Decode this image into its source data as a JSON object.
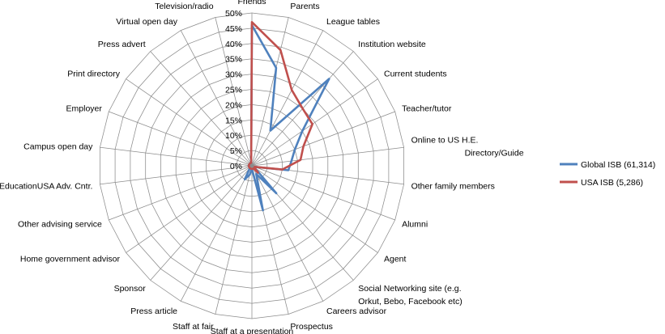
{
  "chart_data": {
    "type": "radar",
    "categories": [
      "Friends",
      "Parents",
      "League tables",
      "Institution website",
      "Current students",
      "Teacher/tutor",
      "Online Directory/Guide to US H.E.",
      "Other family members",
      "Alumni",
      "Agent",
      "Social Networking site (e.g. Orkut, Bebo, Facebook etc)",
      "Careers advisor",
      "Prospectus",
      "Staff at a presentation",
      "Staff at fair",
      "Press article",
      "Sponsor",
      "Home government advisor",
      "Other advising service",
      "EducationUSA Adv. Cntr.",
      "Campus open day",
      "Employer",
      "Print directory",
      "Press advert",
      "Virtual open day",
      "Television/radio"
    ],
    "ticks": [
      "0%",
      "5%",
      "10%",
      "15%",
      "20%",
      "25%",
      "30%",
      "35%",
      "40%",
      "45%",
      "50%"
    ],
    "rmax": 50,
    "series": [
      {
        "name": "Global ISB (61,314)",
        "color": "#4f81bd",
        "values": [
          46,
          33,
          13,
          38,
          20,
          15,
          13,
          12,
          1,
          1,
          12,
          3,
          15,
          1,
          3,
          5,
          1,
          1,
          1,
          1,
          1,
          1,
          1,
          1,
          1,
          1
        ]
      },
      {
        "name": "USA ISB (5,286)",
        "color": "#c0504d",
        "values": [
          47,
          39,
          28,
          25,
          24,
          18,
          16,
          10,
          1,
          1,
          3,
          1,
          1,
          1,
          1,
          1,
          1,
          1,
          1,
          1,
          1,
          1,
          1,
          1,
          1,
          1
        ]
      }
    ]
  }
}
